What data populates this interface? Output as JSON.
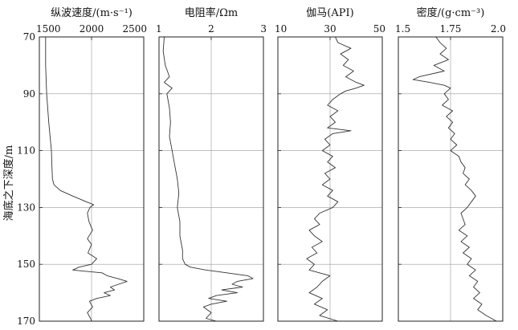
{
  "chart_data": [
    {
      "type": "line",
      "title": "纵波速度/(m·s⁻¹)",
      "ylabel": "海底之下深度/m",
      "xlim": [
        1500,
        2500
      ],
      "xticks": [
        "1500",
        "2000",
        "2500"
      ],
      "ylim": [
        70,
        170
      ],
      "yticks": [
        "70",
        "90",
        "110",
        "130",
        "150",
        "170"
      ],
      "grid": true,
      "series": [
        {
          "depth": [
            70,
            80,
            90,
            100,
            110,
            115,
            120,
            122,
            124,
            126,
            128,
            129,
            130,
            132,
            135,
            138,
            141,
            143,
            146,
            148,
            150,
            151,
            152,
            153,
            154,
            155,
            156,
            157,
            158,
            159,
            160,
            161,
            162,
            163,
            165,
            167,
            169,
            170
          ],
          "values": [
            1560,
            1560,
            1570,
            1590,
            1615,
            1620,
            1625,
            1640,
            1700,
            1820,
            1950,
            2020,
            1985,
            1960,
            1975,
            2010,
            1960,
            2000,
            1965,
            2050,
            2000,
            1880,
            1820,
            2100,
            2150,
            2250,
            2340,
            2260,
            2180,
            2220,
            2120,
            2180,
            2050,
            1980,
            2010,
            1960,
            1990,
            2000
          ]
        }
      ]
    },
    {
      "type": "line",
      "title": "电阻率/Ωm",
      "xlim": [
        1,
        3
      ],
      "xticks": [
        "1",
        "2",
        "3"
      ],
      "ylim": [
        70,
        170
      ],
      "yticks": [
        "70",
        "90",
        "110",
        "130",
        "150",
        "170"
      ],
      "grid": true,
      "series": [
        {
          "depth": [
            70,
            75,
            80,
            84,
            86,
            88,
            90,
            95,
            100,
            105,
            110,
            115,
            120,
            125,
            130,
            135,
            140,
            145,
            148,
            150,
            151,
            152,
            153,
            154,
            155,
            156,
            157,
            158,
            159,
            160,
            161,
            162,
            163,
            164,
            165,
            167,
            169,
            170
          ],
          "values": [
            1.1,
            1.08,
            1.12,
            1.2,
            1.1,
            1.25,
            1.15,
            1.2,
            1.22,
            1.2,
            1.25,
            1.3,
            1.35,
            1.38,
            1.35,
            1.4,
            1.4,
            1.45,
            1.45,
            1.5,
            1.6,
            1.9,
            2.3,
            2.7,
            2.8,
            2.5,
            2.4,
            2.6,
            2.2,
            2.5,
            2.1,
            1.95,
            2.3,
            2.0,
            1.85,
            2.0,
            1.9,
            2.1
          ]
        }
      ]
    },
    {
      "type": "line",
      "title": "伽马(API)",
      "xlim": [
        10,
        50
      ],
      "xticks": [
        "10",
        "30",
        "50"
      ],
      "ylim": [
        70,
        170
      ],
      "yticks": [
        "70",
        "90",
        "110",
        "130",
        "150",
        "170"
      ],
      "grid": true,
      "series": [
        {
          "depth": [
            70,
            72,
            74,
            76,
            78,
            80,
            82,
            84,
            86,
            87,
            88,
            89,
            90,
            92,
            94,
            96,
            98,
            100,
            102,
            103,
            104,
            106,
            108,
            110,
            112,
            114,
            116,
            118,
            120,
            122,
            124,
            126,
            128,
            130,
            132,
            134,
            136,
            138,
            140,
            142,
            144,
            146,
            148,
            150,
            152,
            154,
            156,
            158,
            160,
            162,
            164,
            166,
            168,
            170
          ],
          "values": [
            32,
            33,
            38,
            34,
            37,
            35,
            39,
            36,
            40,
            43,
            40,
            36,
            34,
            31,
            29,
            33,
            30,
            32,
            29,
            38,
            31,
            28,
            30,
            27,
            31,
            29,
            32,
            28,
            30,
            27,
            31,
            29,
            33,
            31,
            26,
            24,
            26,
            22,
            24,
            27,
            23,
            25,
            21,
            24,
            22,
            30,
            27,
            25,
            22,
            27,
            24,
            29,
            26,
            33
          ]
        }
      ]
    },
    {
      "type": "line",
      "title": "密度/(g·cm⁻³)",
      "xlim": [
        1.5,
        2.0
      ],
      "xticks": [
        "1.5",
        "1.75",
        "2.0"
      ],
      "ylim": [
        70,
        170
      ],
      "yticks": [
        "70",
        "90",
        "110",
        "130",
        "150",
        "170"
      ],
      "grid": true,
      "series": [
        {
          "depth": [
            70,
            72,
            74,
            76,
            78,
            80,
            82,
            84,
            85,
            86,
            87,
            88,
            90,
            92,
            94,
            96,
            98,
            100,
            102,
            104,
            106,
            108,
            110,
            112,
            114,
            116,
            118,
            120,
            122,
            124,
            126,
            128,
            130,
            132,
            134,
            136,
            138,
            140,
            142,
            144,
            146,
            148,
            150,
            152,
            154,
            156,
            158,
            160,
            162,
            164,
            166,
            168,
            170
          ],
          "values": [
            1.68,
            1.7,
            1.73,
            1.7,
            1.74,
            1.67,
            1.72,
            1.6,
            1.57,
            1.65,
            1.72,
            1.75,
            1.72,
            1.74,
            1.71,
            1.76,
            1.73,
            1.76,
            1.74,
            1.77,
            1.75,
            1.78,
            1.75,
            1.79,
            1.8,
            1.82,
            1.81,
            1.84,
            1.82,
            1.85,
            1.87,
            1.85,
            1.83,
            1.8,
            1.81,
            1.82,
            1.79,
            1.83,
            1.8,
            1.84,
            1.81,
            1.85,
            1.83,
            1.87,
            1.84,
            1.88,
            1.86,
            1.89,
            1.86,
            1.9,
            1.88,
            1.92,
            1.97
          ]
        }
      ]
    }
  ]
}
